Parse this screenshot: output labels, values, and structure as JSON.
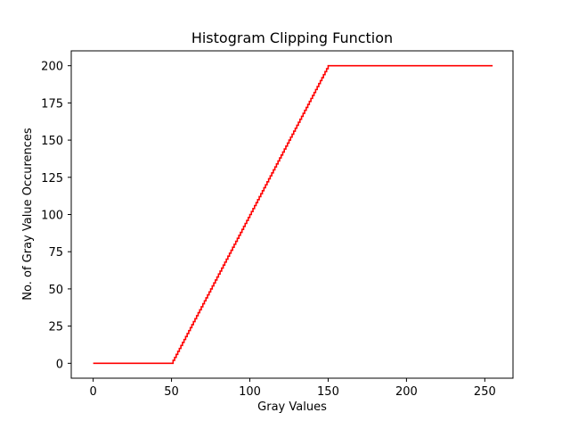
{
  "chart_data": {
    "type": "line",
    "title": "Histogram Clipping Function",
    "xlabel": "Gray Values",
    "ylabel": "No. of Gray Value Occurences",
    "xlim": [
      -14,
      268
    ],
    "ylim": [
      -10,
      210
    ],
    "xticks": [
      0,
      50,
      100,
      150,
      200,
      250
    ],
    "yticks": [
      0,
      25,
      50,
      75,
      100,
      125,
      150,
      175,
      200
    ],
    "grid": false,
    "line_style": "step",
    "series": [
      {
        "color": "#ff0000",
        "points": [
          [
            0,
            0
          ],
          [
            50,
            0
          ],
          [
            150,
            200
          ],
          [
            255,
            200
          ]
        ]
      }
    ]
  }
}
